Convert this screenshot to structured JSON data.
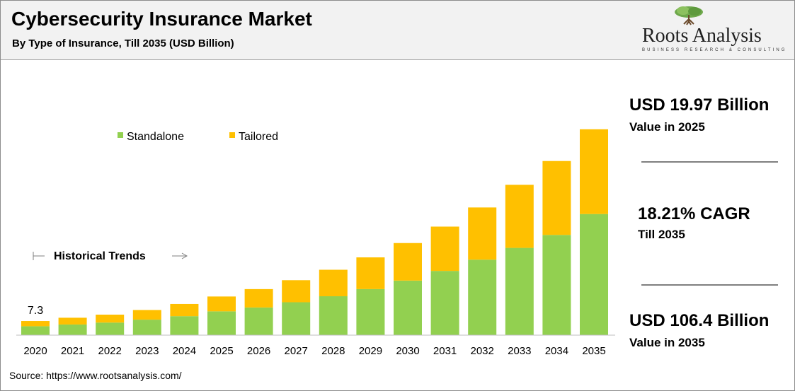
{
  "header": {
    "title": "Cybersecurity Insurance Market",
    "subtitle": "By Type of Insurance, Till 2035 (USD Billion)"
  },
  "logo": {
    "name": "Roots Analysis",
    "tagline": "BUSINESS RESEARCH & CONSULTING",
    "icon": "tree-icon"
  },
  "kpis": [
    {
      "value": "USD 19.97 Billion",
      "label": "Value in 2025"
    },
    {
      "value": "18.21% CAGR",
      "label": "Till 2035"
    },
    {
      "value": "USD 106.4 Billion",
      "label": "Value in 2035"
    }
  ],
  "source": "Source: https://www.rootsanalysis.com/",
  "colors": {
    "standalone": "#92d050",
    "tailored": "#ffc000",
    "rule": "#7f7f7f"
  },
  "chart_data": {
    "type": "bar",
    "stacked": true,
    "categories": [
      "2020",
      "2021",
      "2022",
      "2023",
      "2024",
      "2025",
      "2026",
      "2027",
      "2028",
      "2029",
      "2030",
      "2031",
      "2032",
      "2033",
      "2034",
      "2035"
    ],
    "series": [
      {
        "name": "Standalone",
        "color": "#92d050",
        "values": [
          4.6,
          5.5,
          6.5,
          8.0,
          9.8,
          12.3,
          14.3,
          17.0,
          20.1,
          23.8,
          28.2,
          33.2,
          39.0,
          45.1,
          51.8,
          62.6
        ]
      },
      {
        "name": "Tailored",
        "color": "#ffc000",
        "values": [
          2.7,
          3.5,
          4.1,
          5.0,
          6.3,
          7.67,
          9.5,
          11.4,
          13.7,
          16.4,
          19.4,
          22.9,
          27.0,
          32.6,
          38.2,
          43.8
        ]
      }
    ],
    "data_labels": [
      {
        "index": 0,
        "text": "7.3"
      }
    ],
    "annotation": "Historical Trends",
    "ylim": [
      0,
      110
    ],
    "legend_position": "top-left",
    "grid": false
  }
}
